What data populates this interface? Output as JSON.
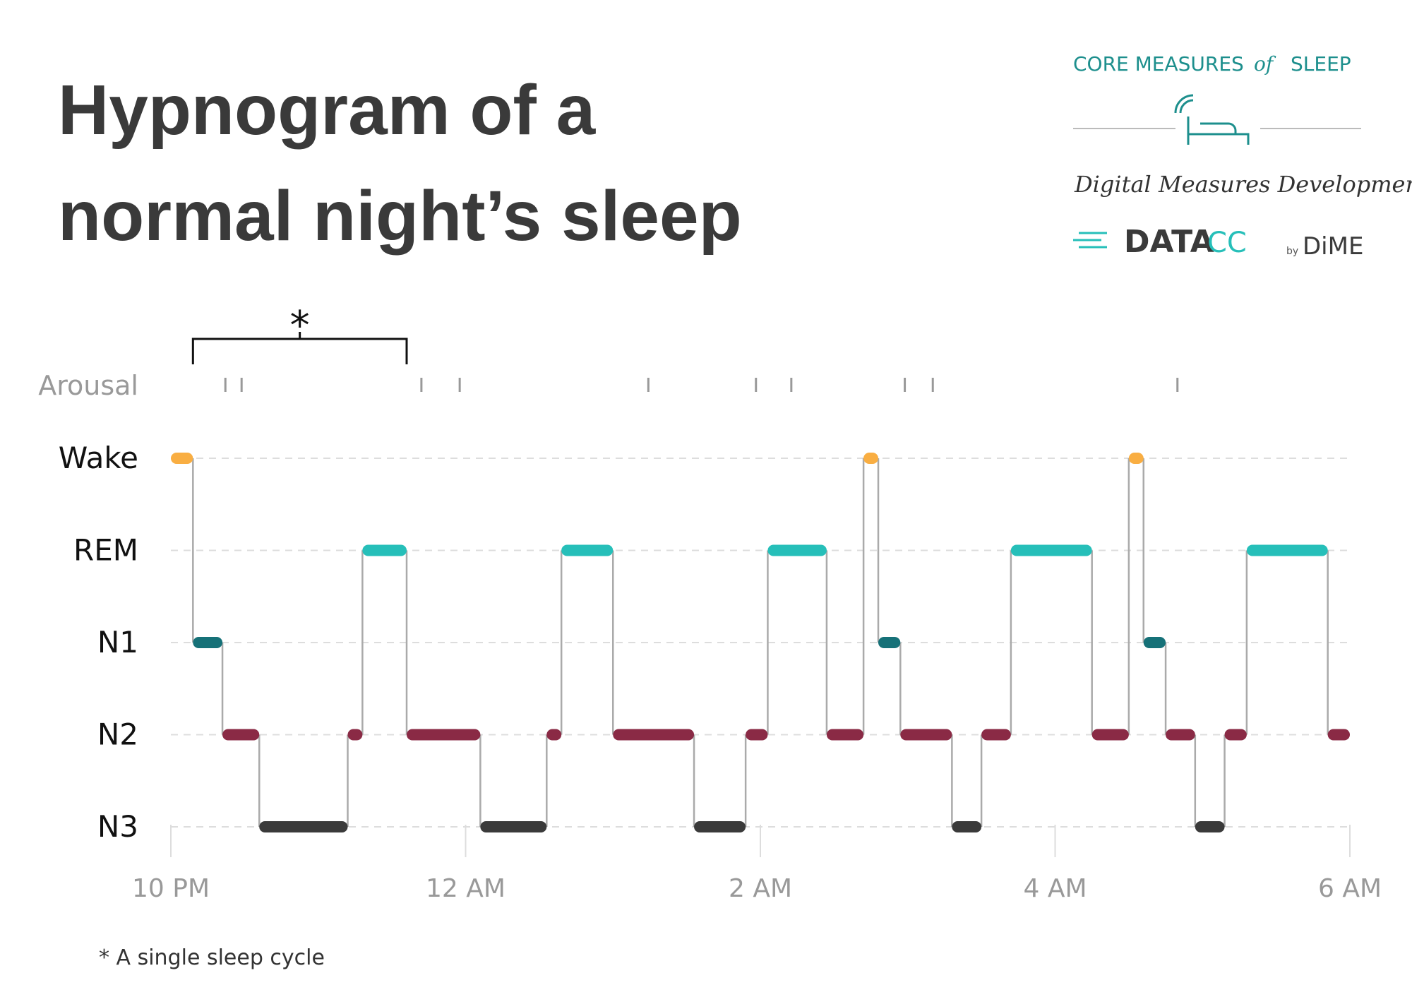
{
  "chart_data": {
    "type": "hypnogram",
    "title": [
      "Hypnogram of a",
      "normal night’s sleep"
    ],
    "stages": [
      "Wake",
      "REM",
      "N1",
      "N2",
      "N3"
    ],
    "stage_colors": {
      "Wake": "#f9ae42",
      "REM": "#26bfb9",
      "N1": "#167178",
      "N2": "#8a2a45",
      "N3": "#3a3a3a"
    },
    "arousal_label": "Arousal",
    "arousals": [
      22.37,
      22.48,
      23.7,
      23.96,
      25.24,
      25.97,
      26.21,
      26.98,
      27.17,
      28.83
    ],
    "segments": {
      "start": [
        22.0,
        22.15,
        22.35,
        22.6,
        23.2,
        23.3,
        23.6,
        24.1,
        24.55,
        24.65,
        25.0,
        25.55,
        25.9,
        26.05,
        26.45,
        26.7,
        26.8,
        26.95,
        27.3,
        27.5,
        27.7,
        28.25,
        28.5,
        28.6,
        28.75,
        28.95,
        29.15,
        29.3,
        29.85
      ],
      "end": [
        22.15,
        22.35,
        22.6,
        23.2,
        23.3,
        23.6,
        24.1,
        24.55,
        24.65,
        25.0,
        25.55,
        25.9,
        26.05,
        26.45,
        26.7,
        26.8,
        26.95,
        27.3,
        27.5,
        27.7,
        28.25,
        28.5,
        28.6,
        28.75,
        28.95,
        29.15,
        29.3,
        29.85,
        30.0
      ],
      "stage": [
        "Wake",
        "N1",
        "N2",
        "N3",
        "N2",
        "REM",
        "N2",
        "N3",
        "N2",
        "REM",
        "N2",
        "N3",
        "N2",
        "REM",
        "N2",
        "Wake",
        "N1",
        "N2",
        "N3",
        "N2",
        "REM",
        "N2",
        "Wake",
        "N1",
        "N2",
        "N3",
        "N2",
        "REM",
        "N2"
      ]
    },
    "xlim": [
      22,
      30
    ],
    "xticks": [
      {
        "value": 22,
        "label": "10 PM"
      },
      {
        "value": 24,
        "label": "12 AM"
      },
      {
        "value": 26,
        "label": "2 AM"
      },
      {
        "value": 28,
        "label": "4 AM"
      },
      {
        "value": 30,
        "label": "6 AM"
      }
    ],
    "grid": true,
    "bracket": {
      "start": 22.15,
      "end": 23.6,
      "label": "*"
    },
    "footnote": "* A single sleep cycle"
  },
  "logos": {
    "core_measures": "CORE MEASURES",
    "of": "of",
    "sleep": "SLEEP",
    "dmd": "Digital Measures Development",
    "datacc": "DATA",
    "cc": "CC",
    "by": "by",
    "dime": "DiME"
  }
}
